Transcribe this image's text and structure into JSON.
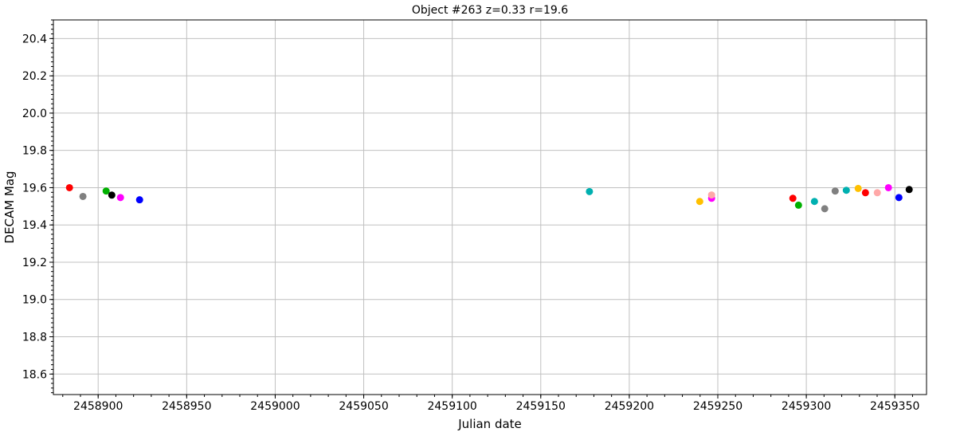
{
  "chart_data": {
    "type": "scatter",
    "title": "Object #263 z=0.33 r=19.6",
    "xlabel": "Julian date",
    "ylabel": "DECAM Mag",
    "xlim": [
      2458874.7,
      2459367.9
    ],
    "ylim": [
      18.49,
      20.5
    ],
    "xticks": [
      2458900,
      2458950,
      2459000,
      2459050,
      2459100,
      2459150,
      2459200,
      2459250,
      2459300,
      2459350
    ],
    "yticks": [
      18.6,
      18.8,
      19.0,
      19.2,
      19.4,
      19.6,
      19.8,
      20.0,
      20.2,
      20.4
    ],
    "xtick_labels": [
      "2458900",
      "2458950",
      "2459000",
      "2459050",
      "2459100",
      "2459150",
      "2459200",
      "2459250",
      "2459300",
      "2459350"
    ],
    "ytick_labels": [
      "18.6",
      "18.8",
      "19.0",
      "19.2",
      "19.4",
      "19.6",
      "19.8",
      "20.0",
      "20.2",
      "20.4"
    ],
    "grid": true,
    "points": [
      {
        "x": 2458883.8,
        "y": 19.6,
        "color": "#ff0000"
      },
      {
        "x": 2458891.4,
        "y": 19.553,
        "color": "#808080"
      },
      {
        "x": 2458904.5,
        "y": 19.582,
        "color": "#00b000"
      },
      {
        "x": 2458907.7,
        "y": 19.56,
        "color": "#000000"
      },
      {
        "x": 2458912.6,
        "y": 19.547,
        "color": "#ff00ff"
      },
      {
        "x": 2458923.4,
        "y": 19.535,
        "color": "#0000ff"
      },
      {
        "x": 2459177.5,
        "y": 19.579,
        "color": "#00b0b0"
      },
      {
        "x": 2459239.8,
        "y": 19.526,
        "color": "#ffc000"
      },
      {
        "x": 2459246.5,
        "y": 19.543,
        "color": "#ff00ff"
      },
      {
        "x": 2459246.5,
        "y": 19.561,
        "color": "#ffa8a8"
      },
      {
        "x": 2459292.4,
        "y": 19.543,
        "color": "#ff0000"
      },
      {
        "x": 2459295.6,
        "y": 19.506,
        "color": "#00b000"
      },
      {
        "x": 2459304.6,
        "y": 19.526,
        "color": "#00b0b0"
      },
      {
        "x": 2459310.4,
        "y": 19.487,
        "color": "#808080"
      },
      {
        "x": 2459316.3,
        "y": 19.582,
        "color": "#808080"
      },
      {
        "x": 2459322.6,
        "y": 19.586,
        "color": "#00b0b0"
      },
      {
        "x": 2459329.3,
        "y": 19.596,
        "color": "#ffc000"
      },
      {
        "x": 2459333.4,
        "y": 19.573,
        "color": "#ff0000"
      },
      {
        "x": 2459340.1,
        "y": 19.573,
        "color": "#ffa8a8"
      },
      {
        "x": 2459346.4,
        "y": 19.6,
        "color": "#ff00ff"
      },
      {
        "x": 2459352.3,
        "y": 19.547,
        "color": "#0000ff"
      },
      {
        "x": 2459358.1,
        "y": 19.59,
        "color": "#000000"
      }
    ]
  }
}
